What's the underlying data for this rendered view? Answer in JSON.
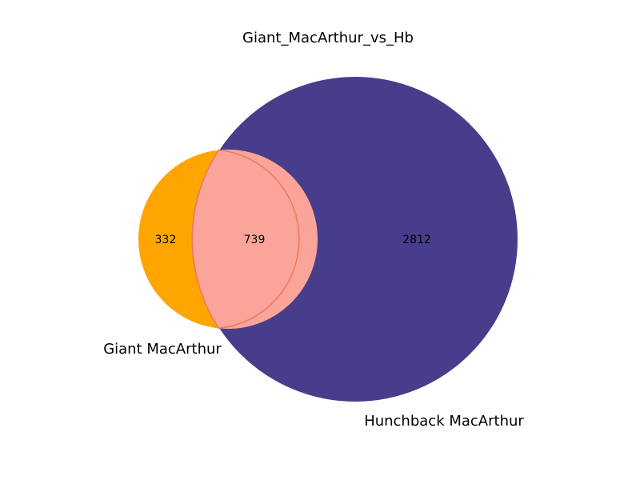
{
  "title": "Giant_MacArthur_vs_Hb",
  "sets": [
    {
      "name": "Giant MacArthur",
      "color": "#FFA500"
    },
    {
      "name": "Hunchback MacArthur",
      "color": "#483D8B"
    }
  ],
  "regions": {
    "only_a": "332",
    "overlap": "739",
    "only_b": "2812"
  },
  "overlap_color": "#FAA49A",
  "overlap_edge_color": "#F07860"
}
